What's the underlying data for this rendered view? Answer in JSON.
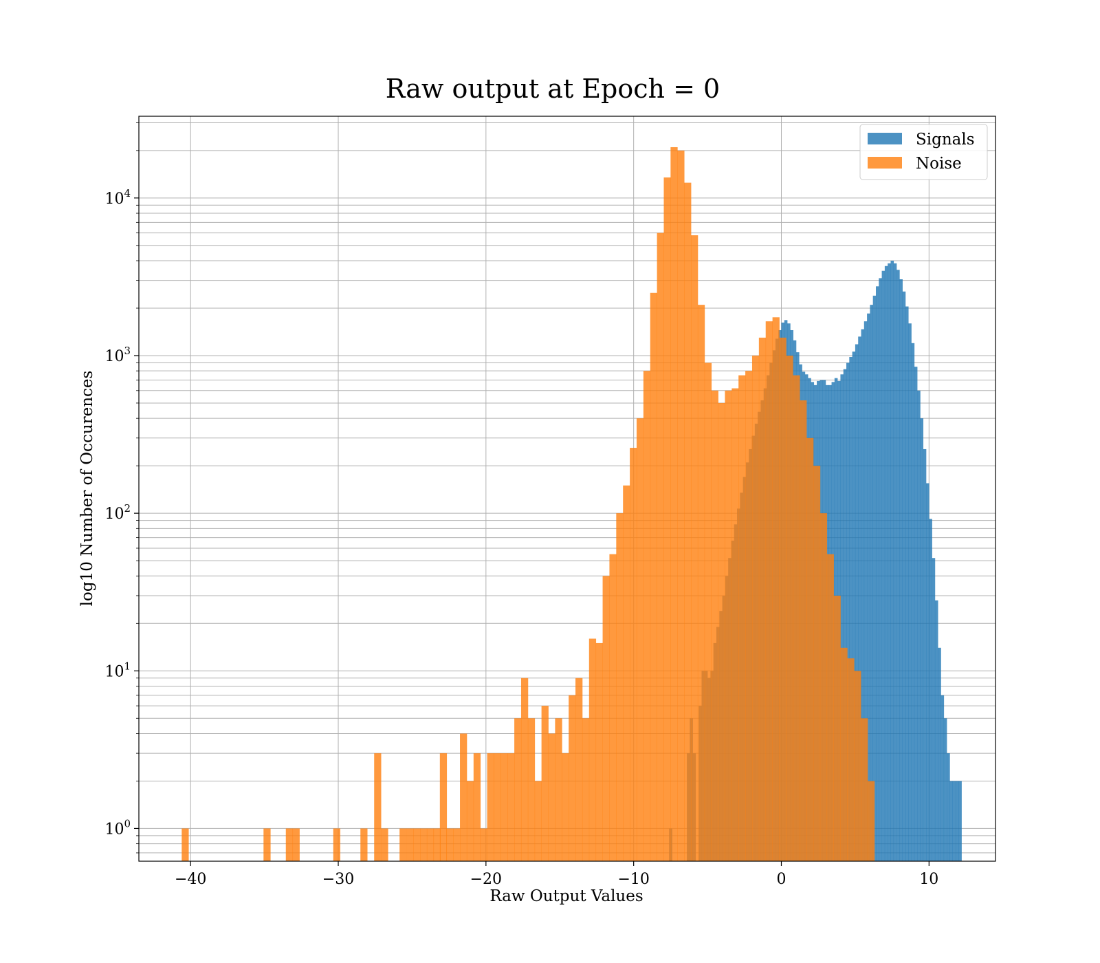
{
  "chart_data": {
    "type": "bar",
    "title": "Raw output at Epoch = 0",
    "xlabel": "Raw Output Values",
    "ylabel": "log10 Number of Occurences",
    "xlim": [
      -43.5,
      14.5
    ],
    "ylim": [
      0.62,
      33000
    ],
    "yscale": "log",
    "grid": true,
    "legend_position": "top-right",
    "x_ticks": [
      -40,
      -30,
      -20,
      -10,
      0,
      10
    ],
    "x_tick_labels": [
      "−40",
      "−30",
      "−20",
      "−10",
      "0",
      "10"
    ],
    "y_ticks": [
      {
        "base": "10",
        "exp": "0",
        "value": 1
      },
      {
        "base": "10",
        "exp": "1",
        "value": 10
      },
      {
        "base": "10",
        "exp": "2",
        "value": 100
      },
      {
        "base": "10",
        "exp": "3",
        "value": 1000
      },
      {
        "base": "10",
        "exp": "4",
        "value": 10000
      }
    ],
    "series": [
      {
        "name": "Signals",
        "color": "#1f77b4",
        "alpha": 0.8,
        "bin_width": 0.2,
        "bins": [
          [
            -7.6,
            1
          ],
          [
            -6.4,
            3
          ],
          [
            -6.2,
            5
          ],
          [
            -6.0,
            3
          ],
          [
            -5.6,
            6
          ],
          [
            -5.4,
            10
          ],
          [
            -5.2,
            10
          ],
          [
            -5.0,
            9
          ],
          [
            -4.8,
            10
          ],
          [
            -4.6,
            15
          ],
          [
            -4.4,
            19
          ],
          [
            -4.2,
            24
          ],
          [
            -4.0,
            30
          ],
          [
            -3.8,
            40
          ],
          [
            -3.6,
            52
          ],
          [
            -3.4,
            67
          ],
          [
            -3.2,
            85
          ],
          [
            -3.0,
            107
          ],
          [
            -2.8,
            135
          ],
          [
            -2.6,
            170
          ],
          [
            -2.4,
            210
          ],
          [
            -2.2,
            255
          ],
          [
            -2.0,
            310
          ],
          [
            -1.8,
            370
          ],
          [
            -1.6,
            440
          ],
          [
            -1.4,
            520
          ],
          [
            -1.2,
            620
          ],
          [
            -1.0,
            750
          ],
          [
            -0.8,
            900
          ],
          [
            -0.6,
            1080
          ],
          [
            -0.4,
            1280
          ],
          [
            -0.2,
            1450
          ],
          [
            0.0,
            1620
          ],
          [
            0.2,
            1680
          ],
          [
            0.4,
            1600
          ],
          [
            0.6,
            1450
          ],
          [
            0.8,
            1250
          ],
          [
            1.0,
            1050
          ],
          [
            1.2,
            880
          ],
          [
            1.4,
            790
          ],
          [
            1.6,
            760
          ],
          [
            1.8,
            720
          ],
          [
            2.0,
            680
          ],
          [
            2.2,
            650
          ],
          [
            2.4,
            690
          ],
          [
            2.6,
            700
          ],
          [
            2.8,
            700
          ],
          [
            3.0,
            650
          ],
          [
            3.2,
            650
          ],
          [
            3.4,
            680
          ],
          [
            3.6,
            720
          ],
          [
            3.8,
            690
          ],
          [
            4.0,
            760
          ],
          [
            4.2,
            820
          ],
          [
            4.4,
            900
          ],
          [
            4.6,
            980
          ],
          [
            4.8,
            1060
          ],
          [
            5.0,
            1180
          ],
          [
            5.2,
            1320
          ],
          [
            5.4,
            1470
          ],
          [
            5.6,
            1650
          ],
          [
            5.8,
            1850
          ],
          [
            6.0,
            2100
          ],
          [
            6.2,
            2400
          ],
          [
            6.4,
            2750
          ],
          [
            6.6,
            3100
          ],
          [
            6.8,
            3450
          ],
          [
            7.0,
            3700
          ],
          [
            7.2,
            3850
          ],
          [
            7.4,
            4000
          ],
          [
            7.6,
            3850
          ],
          [
            7.8,
            3500
          ],
          [
            8.0,
            3050
          ],
          [
            8.2,
            2550
          ],
          [
            8.4,
            2050
          ],
          [
            8.6,
            1600
          ],
          [
            8.8,
            1200
          ],
          [
            9.0,
            850
          ],
          [
            9.2,
            600
          ],
          [
            9.4,
            400
          ],
          [
            9.6,
            255
          ],
          [
            9.8,
            155
          ],
          [
            10.0,
            92
          ],
          [
            10.2,
            52
          ],
          [
            10.4,
            28
          ],
          [
            10.6,
            14
          ],
          [
            10.8,
            7
          ],
          [
            11.0,
            5
          ],
          [
            11.2,
            3
          ],
          [
            11.4,
            2
          ],
          [
            11.6,
            2
          ],
          [
            11.8,
            2
          ],
          [
            12.0,
            2
          ]
        ]
      },
      {
        "name": "Noise",
        "color": "#ff7f0e",
        "alpha": 0.8,
        "bin_width": 0.464,
        "bins": [
          [
            -40.6,
            1
          ],
          [
            -35.06,
            1
          ],
          [
            -33.55,
            1
          ],
          [
            -33.09,
            1
          ],
          [
            -30.34,
            1
          ],
          [
            -28.5,
            1
          ],
          [
            -27.57,
            3
          ],
          [
            -27.1,
            1
          ],
          [
            -25.85,
            1
          ],
          [
            -25.38,
            1
          ],
          [
            -24.92,
            1
          ],
          [
            -24.46,
            1
          ],
          [
            -24.0,
            1
          ],
          [
            -23.55,
            1
          ],
          [
            -23.12,
            3
          ],
          [
            -22.68,
            1
          ],
          [
            -22.22,
            1
          ],
          [
            -21.76,
            4
          ],
          [
            -21.3,
            2
          ],
          [
            -20.84,
            3
          ],
          [
            -20.38,
            1
          ],
          [
            -19.92,
            3
          ],
          [
            -19.46,
            3
          ],
          [
            -19.0,
            3
          ],
          [
            -18.54,
            3
          ],
          [
            -18.08,
            5
          ],
          [
            -17.62,
            9
          ],
          [
            -17.16,
            5
          ],
          [
            -16.7,
            2
          ],
          [
            -16.24,
            6
          ],
          [
            -15.78,
            4
          ],
          [
            -15.32,
            5
          ],
          [
            -14.86,
            3
          ],
          [
            -14.4,
            7
          ],
          [
            -13.94,
            9
          ],
          [
            -13.48,
            5
          ],
          [
            -13.02,
            16
          ],
          [
            -12.56,
            15
          ],
          [
            -12.1,
            40
          ],
          [
            -11.64,
            55
          ],
          [
            -11.18,
            100
          ],
          [
            -10.72,
            150
          ],
          [
            -10.26,
            260
          ],
          [
            -9.8,
            400
          ],
          [
            -9.34,
            800
          ],
          [
            -8.88,
            2500
          ],
          [
            -8.42,
            6000
          ],
          [
            -7.96,
            13500
          ],
          [
            -7.5,
            21000
          ],
          [
            -7.04,
            20000
          ],
          [
            -6.58,
            12500
          ],
          [
            -6.12,
            5800
          ],
          [
            -5.66,
            2100
          ],
          [
            -5.2,
            900
          ],
          [
            -4.74,
            600
          ],
          [
            -4.28,
            500
          ],
          [
            -3.82,
            600
          ],
          [
            -3.36,
            620
          ],
          [
            -2.9,
            750
          ],
          [
            -2.44,
            800
          ],
          [
            -1.98,
            1000
          ],
          [
            -1.52,
            1300
          ],
          [
            -1.06,
            1650
          ],
          [
            -0.6,
            1750
          ],
          [
            -0.14,
            1300
          ],
          [
            0.32,
            1000
          ],
          [
            0.78,
            750
          ],
          [
            1.24,
            520
          ],
          [
            1.7,
            300
          ],
          [
            2.16,
            200
          ],
          [
            2.62,
            100
          ],
          [
            3.08,
            55
          ],
          [
            3.54,
            30
          ],
          [
            4.0,
            14
          ],
          [
            4.46,
            12
          ],
          [
            4.92,
            10
          ],
          [
            5.38,
            5
          ],
          [
            5.84,
            2
          ]
        ]
      }
    ]
  }
}
